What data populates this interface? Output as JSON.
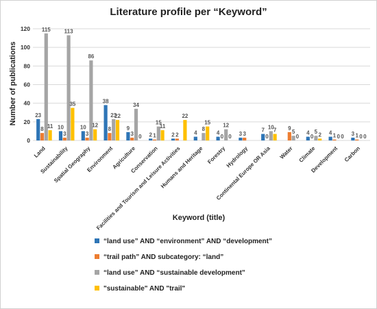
{
  "chart_data": {
    "type": "bar",
    "title": "Literature profile per “Keyword”",
    "xlabel": "Keyword (title)",
    "ylabel": "Number of publications",
    "ylim": [
      0,
      120
    ],
    "yticks": [
      0,
      20,
      40,
      60,
      80,
      100,
      120
    ],
    "grid": true,
    "legend_position": "bottom",
    "categories": [
      "Land",
      "Sustainability",
      "Spatial Geography",
      "Environment",
      "Agriculture",
      "Conservation",
      "Facilities and Tourism and Leisure Activities",
      "Humans and Heritage",
      "Forestry",
      "Hydrology",
      "Continental Europe OR Asia",
      "Water",
      "Climate",
      "Development",
      "Carbon"
    ],
    "series": [
      {
        "name": "“land use” AND “environment” AND “development”",
        "color": "#2e75b6",
        "values": [
          23,
          10,
          10,
          38,
          9,
          2,
          2,
          4,
          4,
          3,
          7,
          0,
          4,
          4,
          3
        ]
      },
      {
        "name": "“trail path” AND subcategory: “land”",
        "color": "#ed7d31",
        "values": [
          8,
          3,
          3,
          8,
          3,
          1,
          2,
          null,
          0,
          3,
          0,
          9,
          0,
          1,
          1
        ]
      },
      {
        "name": "“land use” AND “sustainable development”",
        "color": "#a5a5a5",
        "values": [
          115,
          113,
          86,
          23,
          34,
          15,
          null,
          8,
          12,
          null,
          10,
          5,
          5,
          0,
          0
        ]
      },
      {
        "name": "\"sustainable\" AND \"trail\"",
        "color": "#ffc000",
        "values": [
          11,
          35,
          12,
          22,
          0,
          11,
          22,
          15,
          0,
          null,
          7,
          0,
          2,
          0,
          0
        ]
      }
    ],
    "data_labels": [
      [
        "23",
        "8",
        "115",
        "11"
      ],
      [
        "10",
        "3",
        "113",
        "35"
      ],
      [
        "10",
        "3",
        "86",
        "12"
      ],
      [
        "38",
        "8",
        "23",
        "22"
      ],
      [
        "9",
        "3",
        "34",
        "0"
      ],
      [
        "2",
        "1",
        "15",
        "11"
      ],
      [
        "2",
        "2",
        "",
        "22"
      ],
      [
        "4",
        "",
        "8",
        "15"
      ],
      [
        "4",
        "0",
        "12",
        "0"
      ],
      [
        "3",
        "3",
        "",
        ""
      ],
      [
        "7",
        "0",
        "10",
        "7"
      ],
      [
        "",
        "9",
        "5",
        "0"
      ],
      [
        "4",
        "0",
        "5",
        "2"
      ],
      [
        "4",
        "1",
        "0",
        "0"
      ],
      [
        "3",
        "1",
        "0",
        "0"
      ]
    ]
  }
}
